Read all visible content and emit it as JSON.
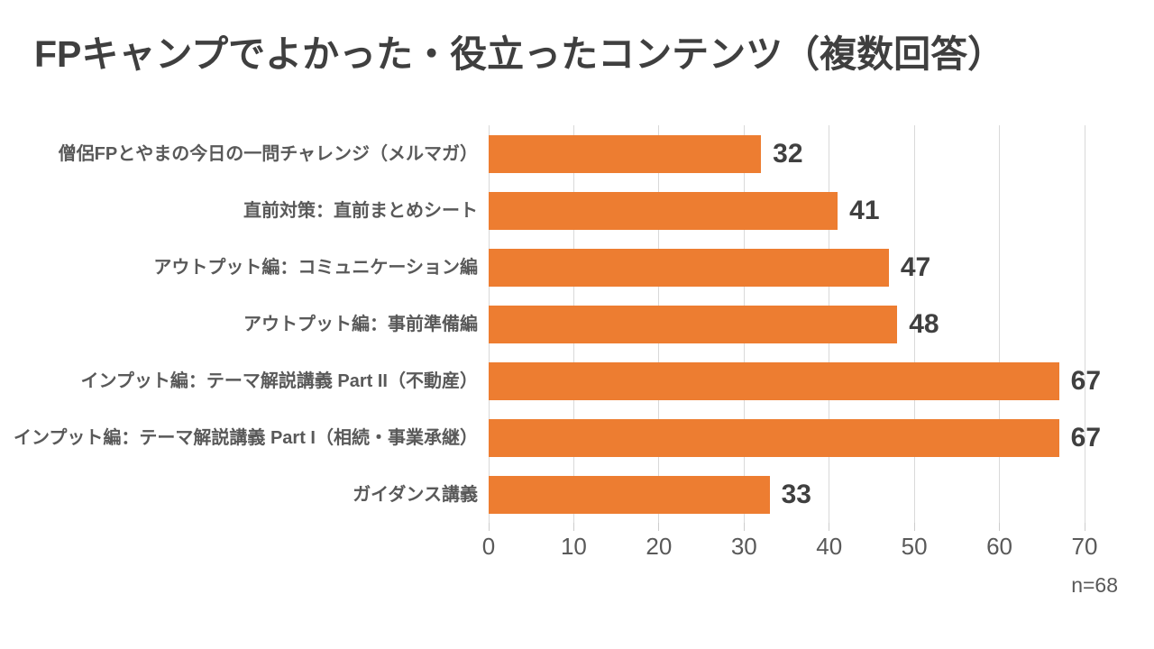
{
  "chart_data": {
    "type": "bar",
    "orientation": "horizontal",
    "title": "FPキャンプでよかった・役立ったコンテンツ（複数回答）",
    "categories": [
      "僧侶FPとやまの今日の一問チャレンジ（メルマガ）",
      "直前対策：直前まとめシート",
      "アウトプット編：コミュニケーション編",
      "アウトプット編：事前準備編",
      "インプット編：テーマ解説講義 Part II（不動産）",
      "インプット編：テーマ解説講義 Part I（相続・事業承継）",
      "ガイダンス講義"
    ],
    "values": [
      32,
      41,
      47,
      48,
      67,
      67,
      33
    ],
    "xlabel": "",
    "ylabel": "",
    "xlim": [
      0,
      70
    ],
    "xticks": [
      0,
      10,
      20,
      30,
      40,
      50,
      60,
      70
    ],
    "grid": true,
    "legend": false,
    "value_labels_shown": true,
    "annotation": "n=68"
  },
  "colors": {
    "bar": "#ed7d31",
    "title_text": "#3f3f3f",
    "category_text": "#595959",
    "value_text": "#404040",
    "axis_text": "#595959",
    "gridline": "#d9d9d9",
    "background": "#ffffff"
  }
}
